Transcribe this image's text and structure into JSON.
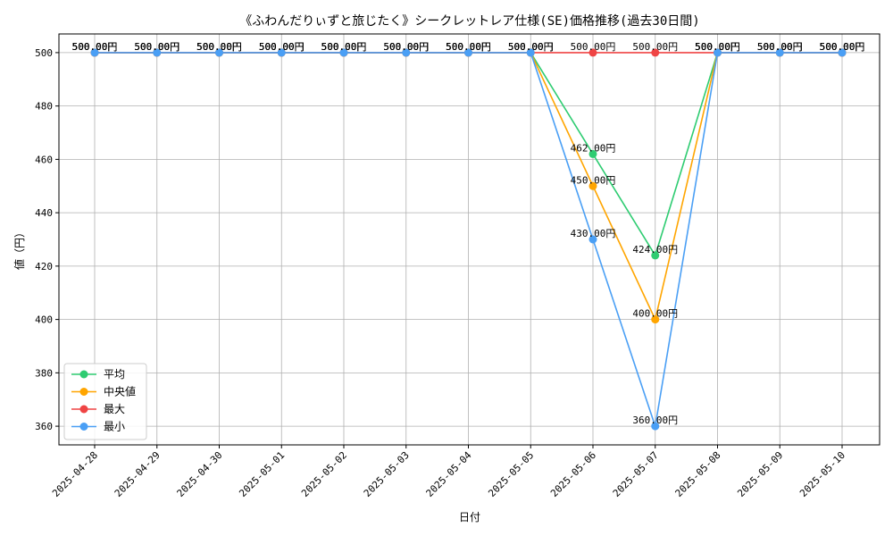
{
  "chart_data": {
    "type": "line",
    "title": "《ふわんだりぃずと旅じたく》シークレットレア仕様(SE)価格推移(過去30日間)",
    "xlabel": "日付",
    "ylabel": "値（円）",
    "ylim": [
      353,
      507
    ],
    "yticks": [
      360,
      380,
      400,
      420,
      440,
      460,
      480,
      500
    ],
    "grid": true,
    "legend_position": "bottom-left",
    "label_suffix": "円",
    "categories": [
      "2025-04-28",
      "2025-04-29",
      "2025-04-30",
      "2025-05-01",
      "2025-05-02",
      "2025-05-03",
      "2025-05-04",
      "2025-05-05",
      "2025-05-06",
      "2025-05-07",
      "2025-05-08",
      "2025-05-09",
      "2025-05-10"
    ],
    "series": [
      {
        "name": "平均",
        "color": "#2ecc71",
        "values": [
          500,
          500,
          500,
          500,
          500,
          500,
          500,
          500,
          462,
          424,
          500,
          500,
          500
        ]
      },
      {
        "name": "中央値",
        "color": "#ffa500",
        "values": [
          500,
          500,
          500,
          500,
          500,
          500,
          500,
          500,
          450,
          400,
          500,
          500,
          500
        ]
      },
      {
        "name": "最大",
        "color": "#ef4444",
        "values": [
          500,
          500,
          500,
          500,
          500,
          500,
          500,
          500,
          500,
          500,
          500,
          500,
          500
        ]
      },
      {
        "name": "最小",
        "color": "#4a9ff5",
        "values": [
          500,
          500,
          500,
          500,
          500,
          500,
          500,
          500,
          430,
          360,
          500,
          500,
          500
        ]
      }
    ]
  }
}
